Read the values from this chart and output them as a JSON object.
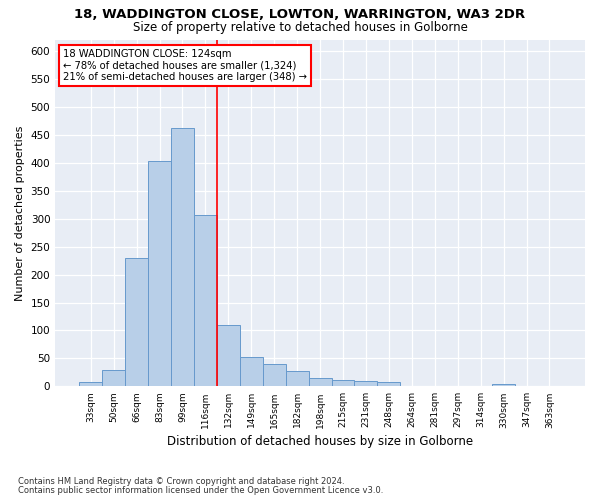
{
  "title1": "18, WADDINGTON CLOSE, LOWTON, WARRINGTON, WA3 2DR",
  "title2": "Size of property relative to detached houses in Golborne",
  "xlabel": "Distribution of detached houses by size in Golborne",
  "ylabel": "Number of detached properties",
  "footnote1": "Contains HM Land Registry data © Crown copyright and database right 2024.",
  "footnote2": "Contains public sector information licensed under the Open Government Licence v3.0.",
  "annotation_line1": "18 WADDINGTON CLOSE: 124sqm",
  "annotation_line2": "← 78% of detached houses are smaller (1,324)",
  "annotation_line3": "21% of semi-detached houses are larger (348) →",
  "bar_color": "#b8cfe8",
  "bar_edge_color": "#6699cc",
  "categories": [
    "33sqm",
    "50sqm",
    "66sqm",
    "83sqm",
    "99sqm",
    "116sqm",
    "132sqm",
    "149sqm",
    "165sqm",
    "182sqm",
    "198sqm",
    "215sqm",
    "231sqm",
    "248sqm",
    "264sqm",
    "281sqm",
    "297sqm",
    "314sqm",
    "330sqm",
    "347sqm",
    "363sqm"
  ],
  "values": [
    7,
    30,
    230,
    403,
    463,
    307,
    110,
    53,
    40,
    27,
    15,
    12,
    10,
    7,
    0,
    0,
    0,
    0,
    5,
    0,
    0
  ],
  "ylim": [
    0,
    620
  ],
  "yticks": [
    0,
    50,
    100,
    150,
    200,
    250,
    300,
    350,
    400,
    450,
    500,
    550,
    600
  ],
  "vline_x": 5.5,
  "figsize": [
    6.0,
    5.0
  ],
  "dpi": 100
}
